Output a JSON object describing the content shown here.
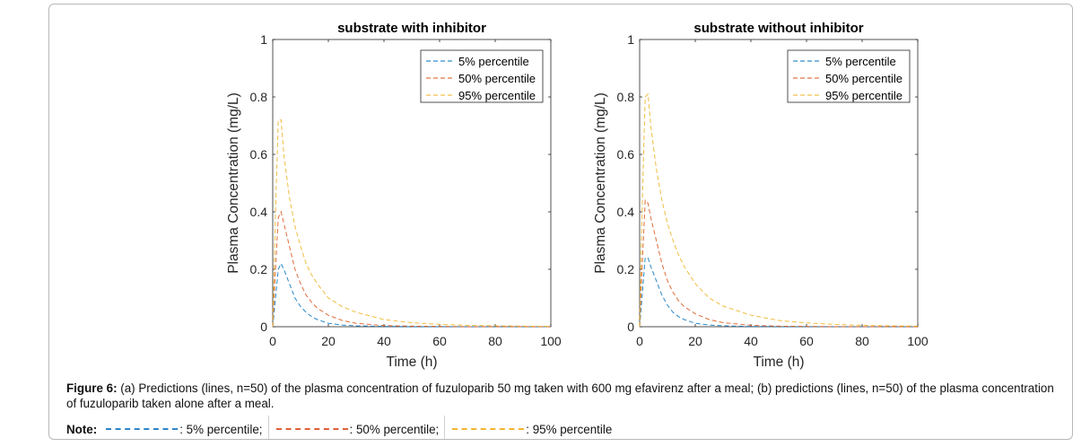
{
  "chart_data": [
    {
      "type": "line",
      "title": "substrate with inhibitor",
      "xlabel": "Time (h)",
      "ylabel": "Plasma Concentration (mg/L)",
      "xlim": [
        0,
        100
      ],
      "ylim": [
        0,
        1
      ],
      "xticks": [
        "0",
        "20",
        "40",
        "60",
        "80",
        "100"
      ],
      "yticks": [
        "0",
        "0.2",
        "0.4",
        "0.6",
        "0.8",
        "1"
      ],
      "legend_position": "top-right",
      "grid": false,
      "series": [
        {
          "name": "5% percentile",
          "color": "#0072BD",
          "x": [
            0,
            1,
            2,
            3,
            4,
            6,
            8,
            10,
            12,
            14,
            16,
            20,
            25,
            30,
            40,
            50,
            60,
            70,
            80,
            90,
            100
          ],
          "y": [
            0,
            0.1,
            0.2,
            0.22,
            0.2,
            0.15,
            0.1,
            0.07,
            0.05,
            0.035,
            0.025,
            0.012,
            0.006,
            0.003,
            0.001,
            0,
            0,
            0,
            0,
            0,
            0
          ]
        },
        {
          "name": "50% percentile",
          "color": "#D95319",
          "x": [
            0,
            1,
            2,
            3,
            4,
            6,
            8,
            10,
            12,
            14,
            16,
            20,
            25,
            30,
            40,
            50,
            60,
            70,
            80,
            90,
            100
          ],
          "y": [
            0,
            0.2,
            0.38,
            0.4,
            0.36,
            0.28,
            0.2,
            0.15,
            0.11,
            0.085,
            0.065,
            0.04,
            0.022,
            0.012,
            0.004,
            0.002,
            0.001,
            0,
            0,
            0,
            0
          ]
        },
        {
          "name": "95% percentile",
          "color": "#EDB120",
          "x": [
            0,
            1,
            2,
            3,
            4,
            6,
            8,
            10,
            12,
            14,
            16,
            20,
            25,
            30,
            40,
            50,
            60,
            70,
            80,
            90,
            100
          ],
          "y": [
            0,
            0.4,
            0.72,
            0.72,
            0.6,
            0.45,
            0.35,
            0.28,
            0.22,
            0.18,
            0.15,
            0.1,
            0.07,
            0.05,
            0.025,
            0.014,
            0.008,
            0.005,
            0.003,
            0.002,
            0.001
          ]
        }
      ]
    },
    {
      "type": "line",
      "title": "substrate without inhibitor",
      "xlabel": "Time (h)",
      "ylabel": "Plasma Concentration (mg/L)",
      "xlim": [
        0,
        100
      ],
      "ylim": [
        0,
        1
      ],
      "xticks": [
        "0",
        "20",
        "40",
        "60",
        "80",
        "100"
      ],
      "yticks": [
        "0",
        "0.2",
        "0.4",
        "0.6",
        "0.8",
        "1"
      ],
      "legend_position": "top-right",
      "grid": false,
      "series": [
        {
          "name": "5% percentile",
          "color": "#0072BD",
          "x": [
            0,
            1,
            2,
            3,
            4,
            6,
            8,
            10,
            12,
            14,
            16,
            20,
            25,
            30,
            40,
            50,
            60,
            70,
            80,
            90,
            100
          ],
          "y": [
            0,
            0.12,
            0.24,
            0.24,
            0.21,
            0.16,
            0.11,
            0.075,
            0.05,
            0.035,
            0.025,
            0.012,
            0.006,
            0.003,
            0.001,
            0,
            0,
            0,
            0,
            0,
            0
          ]
        },
        {
          "name": "50% percentile",
          "color": "#D95319",
          "x": [
            0,
            1,
            2,
            3,
            4,
            6,
            8,
            10,
            12,
            14,
            16,
            20,
            25,
            30,
            40,
            50,
            60,
            70,
            80,
            90,
            100
          ],
          "y": [
            0,
            0.23,
            0.44,
            0.43,
            0.38,
            0.3,
            0.22,
            0.16,
            0.12,
            0.09,
            0.07,
            0.045,
            0.025,
            0.014,
            0.005,
            0.002,
            0.001,
            0,
            0,
            0,
            0
          ]
        },
        {
          "name": "95% percentile",
          "color": "#EDB120",
          "x": [
            0,
            1,
            2,
            3,
            4,
            6,
            8,
            10,
            12,
            14,
            16,
            20,
            25,
            30,
            40,
            50,
            60,
            70,
            80,
            90,
            100
          ],
          "y": [
            0,
            0.45,
            0.8,
            0.81,
            0.7,
            0.55,
            0.44,
            0.36,
            0.3,
            0.25,
            0.21,
            0.15,
            0.1,
            0.072,
            0.04,
            0.022,
            0.013,
            0.008,
            0.005,
            0.003,
            0.002
          ]
        }
      ]
    }
  ],
  "caption": {
    "label": "Figure 6:",
    "text": " (a) Predictions (lines, n=50) of the plasma concentration of fuzuloparib 50 mg taken with 600 mg efavirenz after a meal; (b) predictions (lines, n=50) of the plasma concentration of fuzuloparib taken alone after a meal."
  },
  "note": {
    "label": "Note:",
    "items": [
      {
        "text": ": 5% percentile;",
        "color": "#2e86c9"
      },
      {
        "text": ": 50% percentile;",
        "color": "#e0603a"
      },
      {
        "text": ": 95% percentile",
        "color": "#f2b531"
      }
    ]
  }
}
